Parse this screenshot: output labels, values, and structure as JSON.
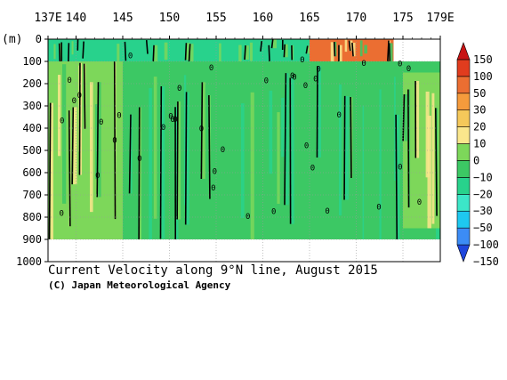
{
  "chart_data": {
    "type": "heatmap",
    "title": "Current Velocity along 9°N line, August 2015",
    "credit": "(C) Japan Meteorological Agency",
    "x_axis": {
      "range": [
        137,
        179
      ],
      "tick_values": [
        137,
        140,
        145,
        150,
        155,
        160,
        165,
        170,
        175,
        179
      ],
      "tick_labels": [
        "137E",
        "140",
        "145",
        "150",
        "155",
        "160",
        "165",
        "170",
        "175",
        "179E"
      ],
      "position": "top"
    },
    "y_axis": {
      "label": "(m)",
      "range": [
        0,
        1000
      ],
      "inverted": true,
      "tick_values": [
        0,
        100,
        200,
        300,
        400,
        500,
        600,
        700,
        800,
        900,
        1000
      ],
      "tick_labels": [
        "0",
        "100",
        "200",
        "300",
        "400",
        "500",
        "600",
        "700",
        "800",
        "900",
        "1000"
      ]
    },
    "grid": true,
    "colorbar": {
      "placement": "right",
      "levels": [
        -150,
        -100,
        -50,
        -30,
        -20,
        -10,
        0,
        10,
        20,
        30,
        50,
        100,
        150
      ],
      "labels": [
        "−150",
        "−100",
        "−50",
        "−30",
        "−20",
        "−10",
        "0",
        "10",
        "20",
        "30",
        "50",
        "100",
        "150"
      ],
      "colors": [
        "#1e46dc",
        "#3c8cf5",
        "#1ec8f0",
        "#3ce6c8",
        "#28d28c",
        "#3cc864",
        "#7dd75a",
        "#fae68c",
        "#f5c85a",
        "#f59b3c",
        "#eb6e32",
        "#e13c1e",
        "#c81414"
      ]
    },
    "contour_label": "0",
    "regions": [
      {
        "name": "surface-westward-band",
        "lon": [
          137,
          165
        ],
        "depth": [
          0,
          100
        ],
        "velocity": -15
      },
      {
        "name": "surface-eastward-jet",
        "lon": [
          165,
          174
        ],
        "depth": [
          0,
          100
        ],
        "velocity": 60
      },
      {
        "name": "western-positive",
        "lon": [
          137,
          145
        ],
        "depth": [
          100,
          900
        ],
        "velocity": 8
      },
      {
        "name": "central-mixed",
        "lon": [
          145,
          165
        ],
        "depth": [
          100,
          900
        ],
        "velocity": -5
      },
      {
        "name": "eastern-mixed",
        "lon": [
          165,
          179
        ],
        "depth": [
          100,
          900
        ],
        "velocity": -5
      },
      {
        "name": "eastern-positive",
        "lon": [
          175,
          179
        ],
        "depth": [
          150,
          850
        ],
        "velocity": 8
      }
    ]
  }
}
